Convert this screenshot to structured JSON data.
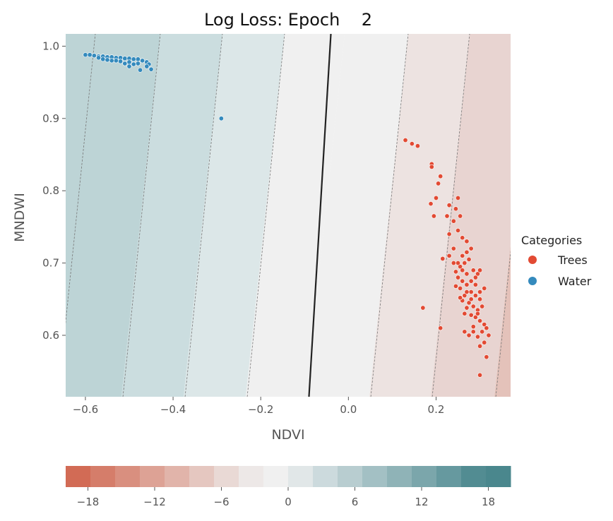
{
  "chart_data": [
    {
      "type": "scatter",
      "title": "Log Loss: Epoch    2",
      "xlabel": "NDVI",
      "ylabel": "MNDWI",
      "xlim": [
        -0.645,
        0.37
      ],
      "ylim": [
        0.515,
        1.017
      ],
      "xticks": [
        -0.6,
        -0.4,
        -0.2,
        0.0,
        0.2
      ],
      "xtick_labels": [
        "−0.6",
        "−0.4",
        "−0.2",
        "0.0",
        "0.2"
      ],
      "yticks": [
        0.6,
        0.7,
        0.8,
        0.9,
        1.0
      ],
      "ytick_labels": [
        "0.6",
        "0.7",
        "0.8",
        "0.9",
        "1.0"
      ],
      "grid": false,
      "decision_boundary": {
        "points": [
          [
            -0.09,
            0.515
          ],
          [
            -0.04,
            1.017
          ]
        ]
      },
      "legend": {
        "title": "Categories",
        "placement": "right",
        "entries": [
          {
            "label": "Trees",
            "color": "#e24a33"
          },
          {
            "label": "Water",
            "color": "#348abd"
          }
        ]
      },
      "series": [
        {
          "name": "Trees",
          "color": "#e24a33",
          "points": [
            [
              0.13,
              0.87
            ],
            [
              0.145,
              0.865
            ],
            [
              0.158,
              0.862
            ],
            [
              0.19,
              0.837
            ],
            [
              0.19,
              0.833
            ],
            [
              0.21,
              0.82
            ],
            [
              0.205,
              0.81
            ],
            [
              0.2,
              0.79
            ],
            [
              0.188,
              0.782
            ],
            [
              0.17,
              0.638
            ],
            [
              0.21,
              0.61
            ],
            [
              0.25,
              0.79
            ],
            [
              0.23,
              0.78
            ],
            [
              0.245,
              0.775
            ],
            [
              0.255,
              0.765
            ],
            [
              0.195,
              0.765
            ],
            [
              0.225,
              0.765
            ],
            [
              0.24,
              0.758
            ],
            [
              0.23,
              0.74
            ],
            [
              0.25,
              0.745
            ],
            [
              0.26,
              0.735
            ],
            [
              0.27,
              0.73
            ],
            [
              0.215,
              0.706
            ],
            [
              0.23,
              0.71
            ],
            [
              0.24,
              0.7
            ],
            [
              0.245,
              0.688
            ],
            [
              0.255,
              0.695
            ],
            [
              0.265,
              0.7
            ],
            [
              0.275,
              0.705
            ],
            [
              0.285,
              0.69
            ],
            [
              0.295,
              0.685
            ],
            [
              0.25,
              0.68
            ],
            [
              0.26,
              0.675
            ],
            [
              0.27,
              0.67
            ],
            [
              0.28,
              0.66
            ],
            [
              0.29,
              0.655
            ],
            [
              0.3,
              0.66
            ],
            [
              0.255,
              0.665
            ],
            [
              0.265,
              0.655
            ],
            [
              0.275,
              0.645
            ],
            [
              0.285,
              0.64
            ],
            [
              0.295,
              0.635
            ],
            [
              0.305,
              0.64
            ],
            [
              0.26,
              0.648
            ],
            [
              0.27,
              0.638
            ],
            [
              0.28,
              0.628
            ],
            [
              0.29,
              0.625
            ],
            [
              0.3,
              0.62
            ],
            [
              0.31,
              0.615
            ],
            [
              0.315,
              0.61
            ],
            [
              0.32,
              0.6
            ],
            [
              0.31,
              0.59
            ],
            [
              0.3,
              0.585
            ],
            [
              0.315,
              0.57
            ],
            [
              0.3,
              0.545
            ],
            [
              0.265,
              0.605
            ],
            [
              0.275,
              0.6
            ],
            [
              0.285,
              0.612
            ],
            [
              0.245,
              0.668
            ],
            [
              0.255,
              0.652
            ],
            [
              0.26,
              0.69
            ],
            [
              0.27,
              0.685
            ],
            [
              0.28,
              0.675
            ],
            [
              0.29,
              0.67
            ],
            [
              0.3,
              0.65
            ],
            [
              0.28,
              0.65
            ],
            [
              0.27,
              0.66
            ],
            [
              0.25,
              0.7
            ],
            [
              0.24,
              0.72
            ],
            [
              0.26,
              0.71
            ],
            [
              0.28,
              0.72
            ],
            [
              0.27,
              0.715
            ],
            [
              0.29,
              0.68
            ],
            [
              0.3,
              0.69
            ],
            [
              0.31,
              0.665
            ],
            [
              0.265,
              0.63
            ],
            [
              0.285,
              0.605
            ],
            [
              0.295,
              0.598
            ],
            [
              0.305,
              0.605
            ],
            [
              0.295,
              0.63
            ]
          ]
        },
        {
          "name": "Water",
          "color": "#348abd",
          "points": [
            [
              -0.6,
              0.988
            ],
            [
              -0.59,
              0.988
            ],
            [
              -0.58,
              0.987
            ],
            [
              -0.57,
              0.986
            ],
            [
              -0.56,
              0.986
            ],
            [
              -0.55,
              0.985
            ],
            [
              -0.54,
              0.985
            ],
            [
              -0.53,
              0.984
            ],
            [
              -0.52,
              0.984
            ],
            [
              -0.51,
              0.983
            ],
            [
              -0.5,
              0.983
            ],
            [
              -0.49,
              0.982
            ],
            [
              -0.48,
              0.982
            ],
            [
              -0.47,
              0.98
            ],
            [
              -0.46,
              0.978
            ],
            [
              -0.455,
              0.975
            ],
            [
              -0.45,
              0.968
            ],
            [
              -0.475,
              0.967
            ],
            [
              -0.49,
              0.975
            ],
            [
              -0.5,
              0.978
            ],
            [
              -0.51,
              0.976
            ],
            [
              -0.52,
              0.979
            ],
            [
              -0.53,
              0.98
            ],
            [
              -0.54,
              0.98
            ],
            [
              -0.55,
              0.981
            ],
            [
              -0.56,
              0.982
            ],
            [
              -0.57,
              0.984
            ],
            [
              -0.5,
              0.972
            ],
            [
              -0.48,
              0.976
            ],
            [
              -0.46,
              0.972
            ],
            [
              -0.29,
              0.9
            ]
          ]
        }
      ]
    },
    {
      "type": "heatmap",
      "orientation": "horizontal",
      "range": [
        -20,
        20
      ],
      "ticks": [
        -18,
        -12,
        -6,
        0,
        6,
        12,
        18
      ],
      "tick_labels": [
        "−18",
        "−12",
        "−6",
        "0",
        "6",
        "12",
        "18"
      ],
      "colors": [
        "#d26b55",
        "#d57d6a",
        "#d98f7f",
        "#dda295",
        "#e1b4aa",
        "#e5c7c0",
        "#e9d9d5",
        "#ede8e7",
        "#f0f0f0",
        "#e1e7e8",
        "#ccdadd",
        "#b8cdd0",
        "#a3c0c4",
        "#8fb3b7",
        "#7ba6ab",
        "#66999f",
        "#528c92",
        "#4a878d"
      ]
    }
  ]
}
